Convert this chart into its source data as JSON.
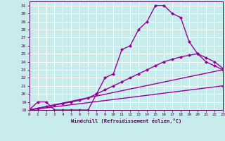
{
  "xlabel": "Windchill (Refroidissement éolien,°C)",
  "bg_color": "#c8ecec",
  "line_color": "#990099",
  "grid_color": "#ffffff",
  "xlim": [
    0,
    23
  ],
  "ylim": [
    18,
    31.5
  ],
  "xticks": [
    0,
    1,
    2,
    3,
    4,
    5,
    6,
    7,
    8,
    9,
    10,
    11,
    12,
    13,
    14,
    15,
    16,
    17,
    18,
    19,
    20,
    21,
    22,
    23
  ],
  "yticks": [
    18,
    19,
    20,
    21,
    22,
    23,
    24,
    25,
    26,
    27,
    28,
    29,
    30,
    31
  ],
  "curve1_x": [
    0,
    1,
    2,
    3,
    4,
    5,
    6,
    7,
    8,
    9,
    10,
    11,
    12,
    13,
    14,
    15,
    16,
    17,
    18,
    19,
    20,
    21,
    22,
    23
  ],
  "curve1_y": [
    18,
    19,
    19,
    18,
    18,
    18,
    18,
    18,
    20,
    22,
    22.5,
    25.5,
    26,
    28,
    29,
    31,
    31,
    30,
    29.5,
    26.5,
    25,
    24,
    23.5,
    23
  ],
  "curve2_x": [
    0,
    1,
    2,
    3,
    4,
    5,
    6,
    7,
    8,
    9,
    10,
    11,
    12,
    13,
    14,
    15,
    16,
    17,
    18,
    19,
    20,
    21,
    22,
    23
  ],
  "curve2_y": [
    18,
    18.2,
    18.4,
    18.6,
    18.8,
    19,
    19.2,
    19.5,
    20,
    20.5,
    21,
    21.5,
    22,
    22.5,
    23,
    23.5,
    24,
    24.3,
    24.6,
    24.8,
    25,
    24.5,
    24,
    23.2
  ],
  "curve3_x": [
    0,
    23
  ],
  "curve3_y": [
    18,
    23
  ],
  "curve4_x": [
    0,
    23
  ],
  "curve4_y": [
    18,
    21
  ],
  "markersize": 2.5,
  "linewidth": 1.0
}
